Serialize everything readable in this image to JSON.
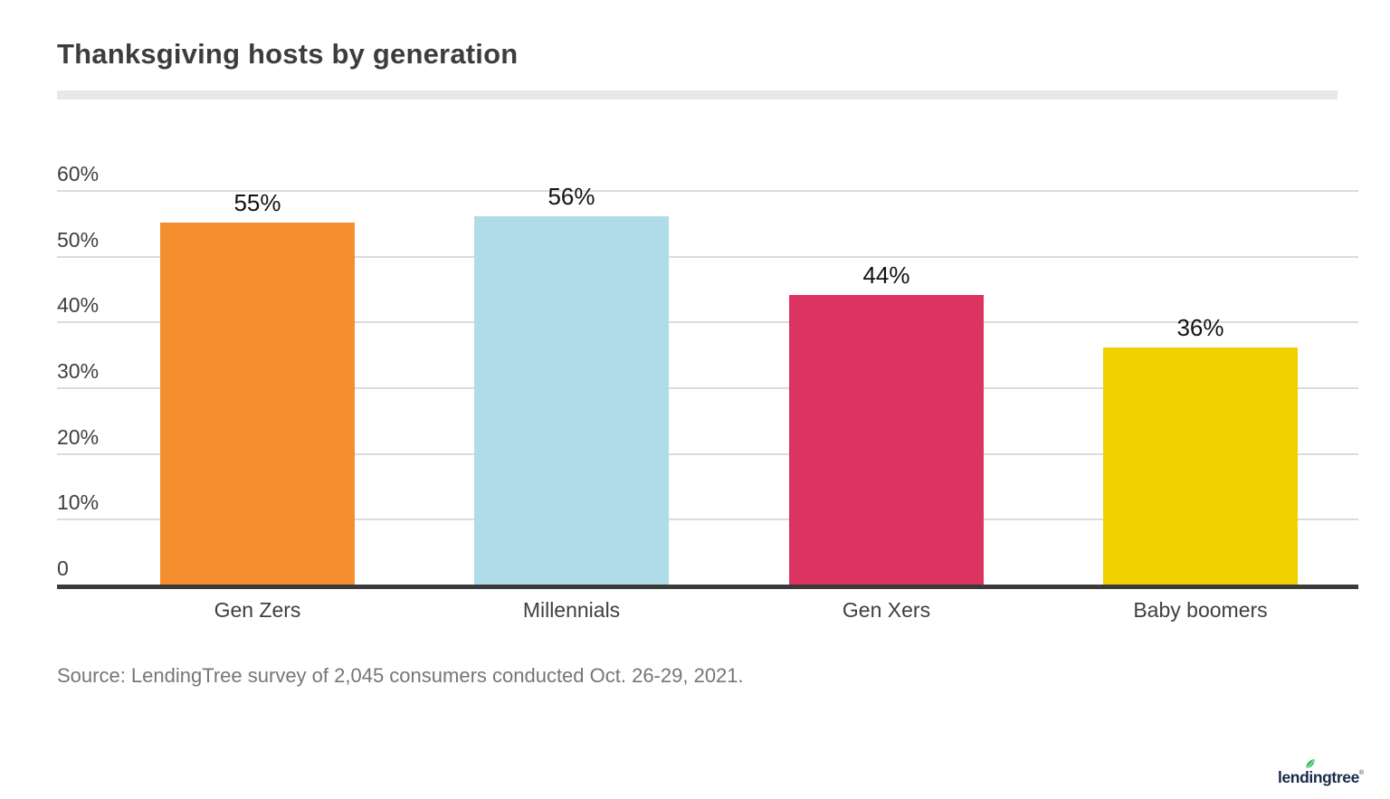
{
  "title": "Thanksgiving hosts by generation",
  "source": "Source: LendingTree survey of 2,045 consumers conducted Oct. 26-29, 2021.",
  "logo": {
    "text": "lendingtree",
    "registered": "®",
    "text_color": "#1b2a4a",
    "leaf_color": "#2ebd59"
  },
  "chart_data": {
    "type": "bar",
    "title": "Thanksgiving hosts by generation",
    "categories": [
      "Gen Zers",
      "Millennials",
      "Gen Xers",
      "Baby boomers"
    ],
    "values": [
      55,
      56,
      44,
      36
    ],
    "value_labels": [
      "55%",
      "56%",
      "44%",
      "36%"
    ],
    "bar_colors": [
      "#f48e2e",
      "#afdce8",
      "#dc3360",
      "#f2d100"
    ],
    "xlabel": "",
    "ylabel": "",
    "ylim": [
      0,
      60
    ],
    "yticks": [
      0,
      10,
      20,
      30,
      40,
      50,
      60
    ],
    "ytick_labels": [
      "0",
      "10%",
      "20%",
      "30%",
      "40%",
      "50%",
      "60%"
    ],
    "grid": true,
    "legend": false,
    "gridline_color": "#dbdbdb",
    "axis_line_color": "#3a3a3a",
    "title_color": "#3d3d3d",
    "label_color": "#3f3f3f",
    "value_label_color": "#121212",
    "source_color": "#767676"
  }
}
